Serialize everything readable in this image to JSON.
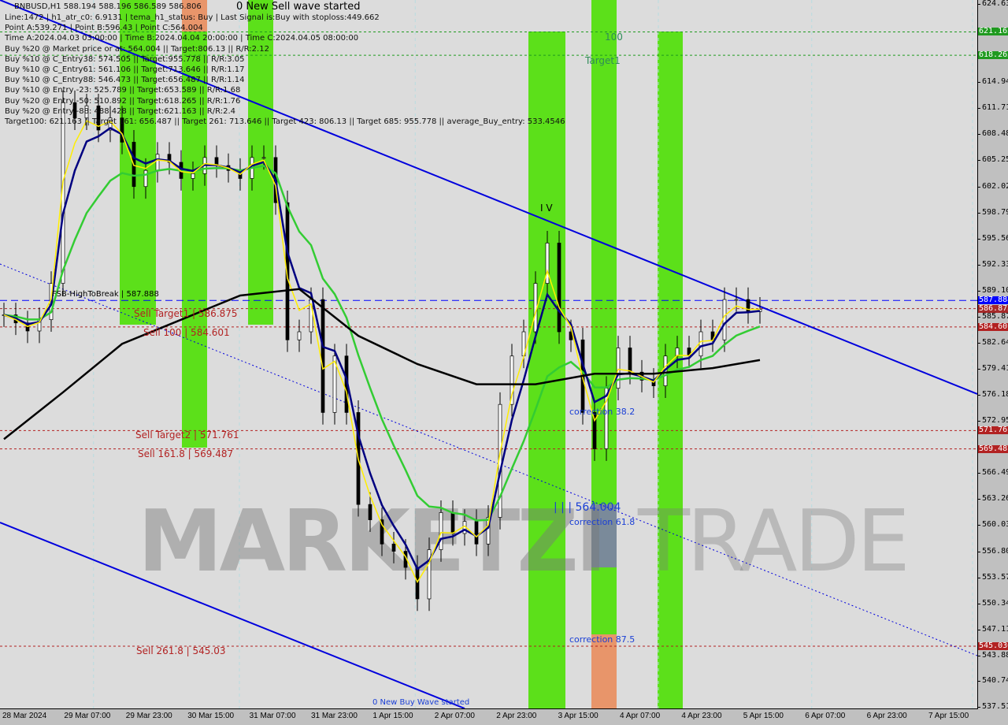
{
  "header": {
    "symbol_line": "BNBUSD,H1  588.194 588.196 586.589 586.806",
    "wave": "0 New Sell wave started",
    "lines": [
      "Line:1472 | h1_atr_c0: 6.9131 | tema_h1_status: Buy | Last Signal is:Buy with stoploss:449.662",
      "Point A:539.271 | Point B:596.43 | Point C:564.004",
      "Time A:2024.04.03 03:00:00 | Time B:2024.04.04 20:00:00 | Time C:2024.04.05 08:00:00",
      "Buy %20 @ Market price or at: 564.004 || Target:806.13 || R/R:2.12",
      "Buy %10 @ C_Entry38: 574.505 || Target:955.778 || R/R:3.05",
      "Buy %10 @ C_Entry61: 561.106 || Target:713.646 || R/R:1.17",
      "Buy %10 @ C_Entry88: 546.473 || Target:656.487 || R/R:1.14",
      "Buy %10 @ Entry -23: 525.789 || Target:653.589 || R/R:1.68",
      "Buy %20 @ Entry -50: 510.892 || Target:618.265 || R/R:1.76",
      "Buy %20 @ Entry -88: 488.428 || Target:621.163 || R/R:2.4",
      "Target100: 621.163 || Target 161: 656.487 || Target 261: 713.646 || Target 423: 806.13 || Target 685: 955.778 || average_Buy_entry: 533.4546"
    ]
  },
  "annotations": {
    "fsb": "FSB-HighToBreak | 587.888",
    "sell_t1": "Sell Target1 | 586.875",
    "sell_100": "Sell 100 | 584.601",
    "sell_t2": "Sell Target2 | 571.761",
    "sell_1618": "Sell 161.8 | 569.487",
    "sell_2618": "Sell 261.8 | 545.03",
    "hundred": "100",
    "target1": "Target1",
    "c382": "correction 38.2",
    "c618": "correction 61.8",
    "c875": "correction 87.5",
    "pointc": "| | | 564.004",
    "iv": "I V",
    "buywave": "0 New Buy Wave started",
    "watermark1": "MARKETZI",
    "watermark2": "TRADE"
  },
  "colors": {
    "bull": "#000000",
    "up_candle": "#ffffff",
    "green_zone": "#5ce01a",
    "orange_zone": "#e8956a",
    "channel": "#0000dd",
    "ma_black": "#000000",
    "ma_green": "#33cc33",
    "ma_yellow": "#ffee00",
    "ma_navy": "#000080"
  },
  "chart_data": {
    "type": "candlestick",
    "ylim": [
      537.515,
      624.63
    ],
    "y_ticks": [
      "624.630",
      "621.163",
      "618.265",
      "614.940",
      "611.710",
      "608.480",
      "605.250",
      "602.020",
      "598.790",
      "595.560",
      "592.330",
      "589.100",
      "587.888",
      "586.875",
      "585.870",
      "584.601",
      "582.640",
      "579.410",
      "576.180",
      "572.950",
      "571.761",
      "569.487",
      "566.490",
      "563.260",
      "560.030",
      "556.800",
      "553.570",
      "550.340",
      "547.110",
      "545.030",
      "543.880",
      "540.745",
      "537.515"
    ],
    "x_ticks": [
      "28 Mar 2024",
      "29 Mar 07:00",
      "29 Mar 23:00",
      "30 Mar 15:00",
      "31 Mar 07:00",
      "31 Mar 23:00",
      "1 Apr 15:00",
      "2 Apr 07:00",
      "2 Apr 23:00",
      "3 Apr 15:00",
      "4 Apr 07:00",
      "4 Apr 23:00",
      "5 Apr 15:00",
      "6 Apr 07:00",
      "6 Apr 23:00",
      "7 Apr 15:00"
    ],
    "close": [
      586.1,
      585.1,
      584.1,
      585.5,
      590,
      612.4,
      610.5,
      612,
      609,
      610.5,
      607.5,
      602,
      604,
      606,
      605,
      603,
      603.6,
      605.6,
      604.6,
      604,
      603,
      605.6,
      605.6,
      600,
      583,
      584,
      588,
      574,
      581,
      574,
      562.6,
      560.7,
      557.7,
      556.8,
      554.8,
      550.9,
      557,
      561.6,
      559,
      560.5,
      557.7,
      561,
      575,
      581,
      584,
      590,
      595,
      584,
      583,
      574,
      569.5,
      577,
      582,
      579,
      578,
      577.3,
      581,
      582,
      581,
      584,
      583,
      588,
      588,
      586.5,
      586.8
    ],
    "ma_slow": [
      570.7,
      576.5,
      582.5,
      585.5,
      588.5,
      589.3,
      583.5,
      580,
      577.5,
      577.5,
      578.8,
      578.8,
      579.5,
      580.5
    ],
    "levels": [
      {
        "price": 621.163,
        "label": "621.163",
        "color": "#1f9a1f"
      },
      {
        "price": 618.265,
        "label": "618.265",
        "color": "#1f9a1f"
      },
      {
        "price": 587.888,
        "label": "587.888",
        "color": "#0000ff"
      },
      {
        "price": 586.875,
        "label": "586.875",
        "color": "#a52a2a"
      },
      {
        "price": 584.601,
        "label": "584.601",
        "color": "#b22222"
      },
      {
        "price": 571.761,
        "label": "571.761",
        "color": "#b22222"
      },
      {
        "price": 569.487,
        "label": "569.487",
        "color": "#b22222"
      },
      {
        "price": 545.03,
        "label": "545.030",
        "color": "#b22222"
      }
    ]
  }
}
